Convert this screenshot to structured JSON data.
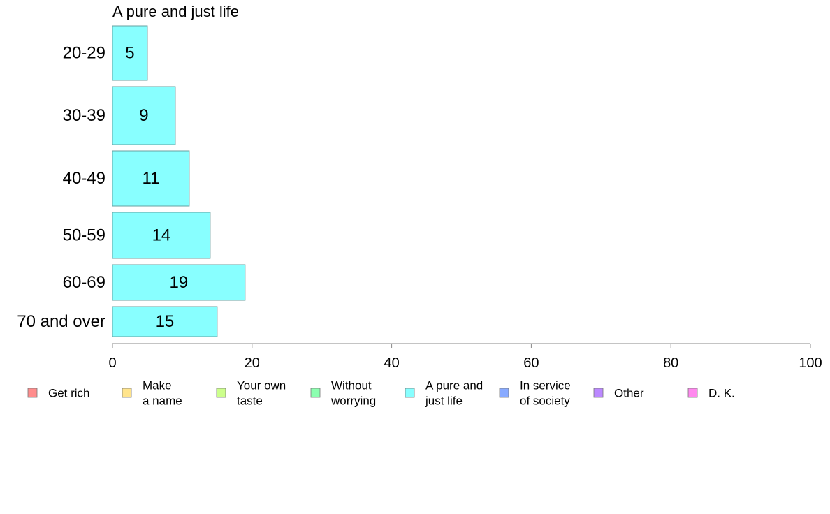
{
  "chart_data": {
    "type": "bar",
    "orientation": "horizontal",
    "title": "A pure and just life",
    "categories": [
      "20-29",
      "30-39",
      "40-49",
      "50-59",
      "60-69",
      "70 and over"
    ],
    "values": [
      5,
      9,
      11,
      14,
      19,
      15
    ],
    "xlim": [
      0,
      100
    ],
    "xticks": [
      "0",
      "20",
      "40",
      "60",
      "80",
      "100"
    ],
    "bar_color": "#88ffff",
    "bar_stroke": "#66a0a0",
    "grid": false,
    "legend_position": "bottom",
    "legend": [
      {
        "label": [
          "Get rich"
        ],
        "color": "#ff8c8c"
      },
      {
        "label": [
          "Make",
          "a name"
        ],
        "color": "#ffe48c"
      },
      {
        "label": [
          "Your own",
          "taste"
        ],
        "color": "#ccff8c"
      },
      {
        "label": [
          "Without",
          "worrying"
        ],
        "color": "#8cffb0"
      },
      {
        "label": [
          "A pure and",
          "just life"
        ],
        "color": "#88ffff"
      },
      {
        "label": [
          "In service",
          "of society"
        ],
        "color": "#88aaff"
      },
      {
        "label": [
          "Other"
        ],
        "color": "#bb88ff"
      },
      {
        "label": [
          "D. K."
        ],
        "color": "#ff88ee"
      }
    ]
  }
}
